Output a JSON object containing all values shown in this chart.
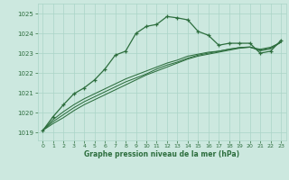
{
  "xlabel": "Graphe pression niveau de la mer (hPa)",
  "bg_color": "#cce8df",
  "grid_color": "#aad4c8",
  "line_color": "#2d6e3e",
  "ylim": [
    1018.6,
    1025.5
  ],
  "xlim": [
    -0.5,
    23.5
  ],
  "yticks": [
    1019,
    1020,
    1021,
    1022,
    1023,
    1024,
    1025
  ],
  "xticks": [
    0,
    1,
    2,
    3,
    4,
    5,
    6,
    7,
    8,
    9,
    10,
    11,
    12,
    13,
    14,
    15,
    16,
    17,
    18,
    19,
    20,
    21,
    22,
    23
  ],
  "series1_x": [
    0,
    1,
    2,
    3,
    4,
    5,
    6,
    7,
    8,
    9,
    10,
    11,
    12,
    13,
    14,
    15,
    16,
    17,
    18,
    19,
    20,
    21,
    22,
    23
  ],
  "series1_y": [
    1019.1,
    1019.8,
    1020.4,
    1020.95,
    1021.25,
    1021.65,
    1022.2,
    1022.9,
    1023.1,
    1024.0,
    1024.35,
    1024.45,
    1024.85,
    1024.78,
    1024.68,
    1024.1,
    1023.9,
    1023.4,
    1023.5,
    1023.5,
    1023.5,
    1023.0,
    1023.1,
    1023.65
  ],
  "series2_x": [
    0,
    1,
    2,
    3,
    4,
    5,
    6,
    7,
    8,
    9,
    10,
    11,
    12,
    13,
    14,
    15,
    16,
    17,
    18,
    19,
    20,
    21,
    22,
    23
  ],
  "series2_y": [
    1019.1,
    1019.45,
    1019.75,
    1020.1,
    1020.4,
    1020.65,
    1020.9,
    1021.15,
    1021.4,
    1021.65,
    1021.9,
    1022.1,
    1022.3,
    1022.5,
    1022.7,
    1022.85,
    1022.95,
    1023.05,
    1023.15,
    1023.25,
    1023.3,
    1023.2,
    1023.3,
    1023.55
  ],
  "series3_x": [
    0,
    1,
    2,
    3,
    4,
    5,
    6,
    7,
    8,
    9,
    10,
    11,
    12,
    13,
    14,
    15,
    16,
    17,
    18,
    19,
    20,
    21,
    22,
    23
  ],
  "series3_y": [
    1019.1,
    1019.55,
    1019.9,
    1020.25,
    1020.55,
    1020.8,
    1021.05,
    1021.3,
    1021.55,
    1021.75,
    1021.95,
    1022.2,
    1022.4,
    1022.55,
    1022.75,
    1022.9,
    1023.0,
    1023.1,
    1023.2,
    1023.28,
    1023.3,
    1023.15,
    1023.25,
    1023.55
  ],
  "series4_x": [
    0,
    1,
    2,
    3,
    4,
    5,
    6,
    7,
    8,
    9,
    10,
    11,
    12,
    13,
    14,
    15,
    16,
    17,
    18,
    19,
    20,
    21,
    22,
    23
  ],
  "series4_y": [
    1019.1,
    1019.65,
    1020.05,
    1020.4,
    1020.7,
    1020.95,
    1021.2,
    1021.45,
    1021.7,
    1021.9,
    1022.1,
    1022.3,
    1022.5,
    1022.65,
    1022.85,
    1022.95,
    1023.05,
    1023.1,
    1023.2,
    1023.28,
    1023.32,
    1023.12,
    1023.22,
    1023.55
  ]
}
